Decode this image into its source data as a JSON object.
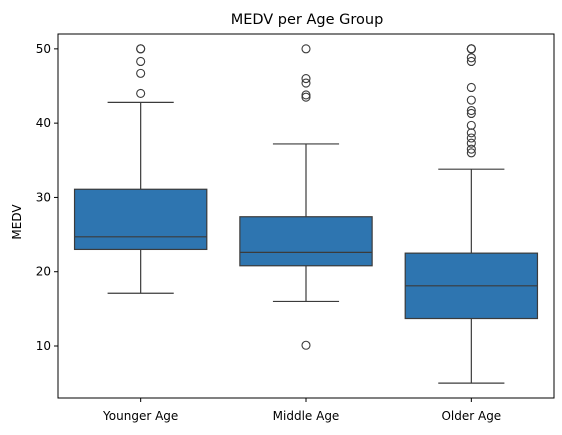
{
  "chart_data": {
    "type": "box",
    "title": "MEDV per Age Group",
    "xlabel": "",
    "ylabel": "MEDV",
    "ylim": [
      3,
      52
    ],
    "yticks": [
      10,
      20,
      30,
      40,
      50
    ],
    "grid": false,
    "categories": [
      "Younger Age",
      "Middle Age",
      "Older Age"
    ],
    "box_color": "#2e75b0",
    "line_color": "#3b3b3b",
    "boxes": [
      {
        "category": "Younger Age",
        "whisker_low": 17.1,
        "q1": 23.0,
        "median": 24.7,
        "q3": 31.1,
        "whisker_high": 42.8,
        "outliers": [
          44.0,
          46.7,
          48.3,
          50.0,
          50.0
        ]
      },
      {
        "category": "Middle Age",
        "whisker_low": 16.0,
        "q1": 20.8,
        "median": 22.6,
        "q3": 27.4,
        "whisker_high": 37.2,
        "outliers": [
          10.1,
          43.5,
          43.8,
          45.4,
          46.0,
          50.0
        ]
      },
      {
        "category": "Older Age",
        "whisker_low": 5.0,
        "q1": 13.7,
        "median": 18.1,
        "q3": 22.5,
        "whisker_high": 33.8,
        "outliers": [
          36.0,
          36.5,
          37.3,
          38.0,
          38.7,
          39.7,
          41.3,
          41.7,
          43.1,
          44.8,
          48.3,
          48.8,
          50.0,
          50.0,
          50.0
        ]
      }
    ]
  }
}
